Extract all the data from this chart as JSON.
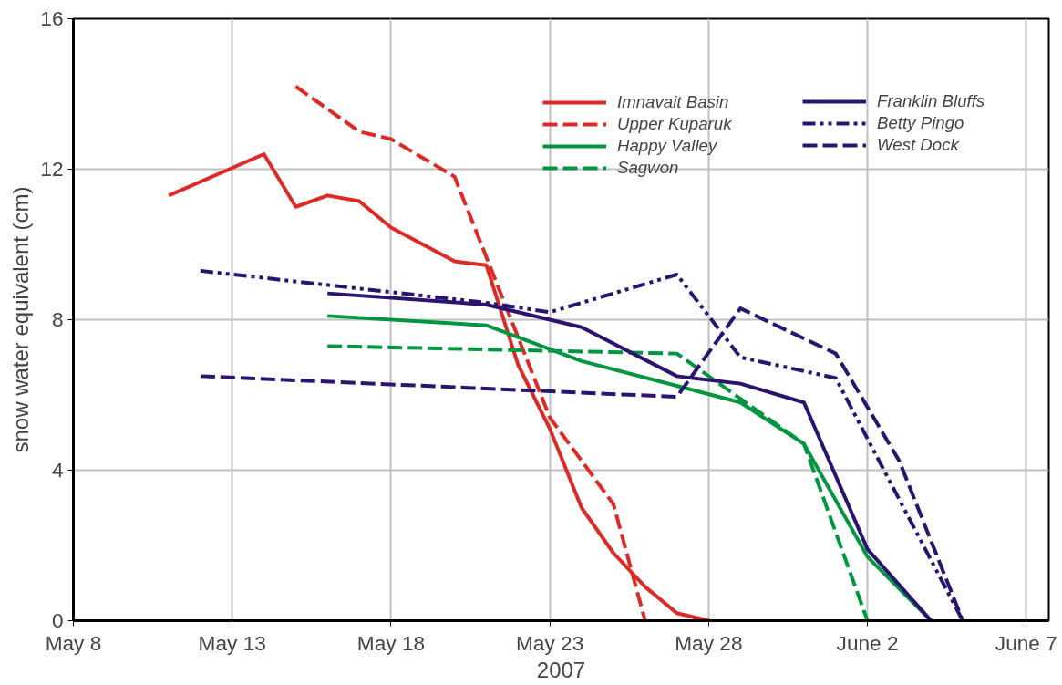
{
  "chart_data": {
    "type": "line",
    "xlabel": "2007",
    "ylabel": "snow water equivalent (cm)",
    "xlim": [
      "2007-05-08",
      "2007-06-07T17:00"
    ],
    "ylim": [
      0,
      16
    ],
    "yticks": [
      0,
      4,
      8,
      12,
      16
    ],
    "xticks": [
      {
        "value": "2007-05-08",
        "label": "May 8"
      },
      {
        "value": "2007-05-13",
        "label": "May 13"
      },
      {
        "value": "2007-05-18",
        "label": "May 18"
      },
      {
        "value": "2007-05-23",
        "label": "May 23"
      },
      {
        "value": "2007-05-28",
        "label": "May 28"
      },
      {
        "value": "2007-06-02",
        "label": "June 2"
      },
      {
        "value": "2007-06-07",
        "label": "June 7"
      }
    ],
    "grid": true,
    "legend": "top right",
    "marker": "none",
    "series": [
      {
        "name": "Imnavait Basin",
        "color": "#dc2a26",
        "line_style": "solid",
        "x": [
          "2007-05-11",
          "2007-05-14",
          "2007-05-15",
          "2007-05-16",
          "2007-05-17",
          "2007-05-18",
          "2007-05-20",
          "2007-05-21",
          "2007-05-22",
          "2007-05-23",
          "2007-05-24",
          "2007-05-25",
          "2007-05-26",
          "2007-05-27",
          "2007-05-28"
        ],
        "values": [
          11.3,
          12.4,
          11.0,
          11.3,
          11.15,
          10.45,
          9.55,
          9.45,
          6.8,
          5.1,
          3.0,
          1.8,
          0.9,
          0.2,
          0
        ]
      },
      {
        "name": "Upper Kuparuk",
        "color": "#dc2a26",
        "line_style": "dashed",
        "x": [
          "2007-05-15",
          "2007-05-17",
          "2007-05-18",
          "2007-05-20",
          "2007-05-23",
          "2007-05-25",
          "2007-05-26"
        ],
        "values": [
          14.2,
          13.0,
          12.8,
          11.8,
          5.4,
          3.1,
          0
        ]
      },
      {
        "name": "Happy Valley",
        "color": "#00953f",
        "line_style": "solid",
        "x": [
          "2007-05-16",
          "2007-05-21",
          "2007-05-24",
          "2007-05-29",
          "2007-05-31",
          "2007-06-02",
          "2007-06-04"
        ],
        "values": [
          8.1,
          7.85,
          6.9,
          5.8,
          4.7,
          1.7,
          0
        ]
      },
      {
        "name": "Sagwon",
        "color": "#00953f",
        "line_style": "dashed",
        "x": [
          "2007-05-16",
          "2007-05-27",
          "2007-05-31",
          "2007-06-02"
        ],
        "values": [
          7.3,
          7.1,
          4.7,
          0
        ]
      },
      {
        "name": "Franklin Bluffs",
        "color": "#2a1470",
        "line_style": "solid",
        "x": [
          "2007-05-16",
          "2007-05-21",
          "2007-05-24",
          "2007-05-27",
          "2007-05-29",
          "2007-05-31",
          "2007-06-02",
          "2007-06-04"
        ],
        "values": [
          8.7,
          8.4,
          7.8,
          6.5,
          6.3,
          5.8,
          1.9,
          0
        ]
      },
      {
        "name": "Betty Pingo",
        "color": "#2a1470",
        "line_style": "dashdot",
        "x": [
          "2007-05-12",
          "2007-05-21",
          "2007-05-23",
          "2007-05-27",
          "2007-05-29",
          "2007-06-01",
          "2007-06-05"
        ],
        "values": [
          9.3,
          8.45,
          8.2,
          9.2,
          7.0,
          6.45,
          0
        ]
      },
      {
        "name": "West Dock",
        "color": "#2a1470",
        "line_style": "dashed",
        "x": [
          "2007-05-12",
          "2007-05-27",
          "2007-05-29",
          "2007-06-01",
          "2007-06-03",
          "2007-06-05"
        ],
        "values": [
          6.5,
          5.95,
          8.3,
          7.1,
          4.25,
          0
        ]
      }
    ]
  }
}
